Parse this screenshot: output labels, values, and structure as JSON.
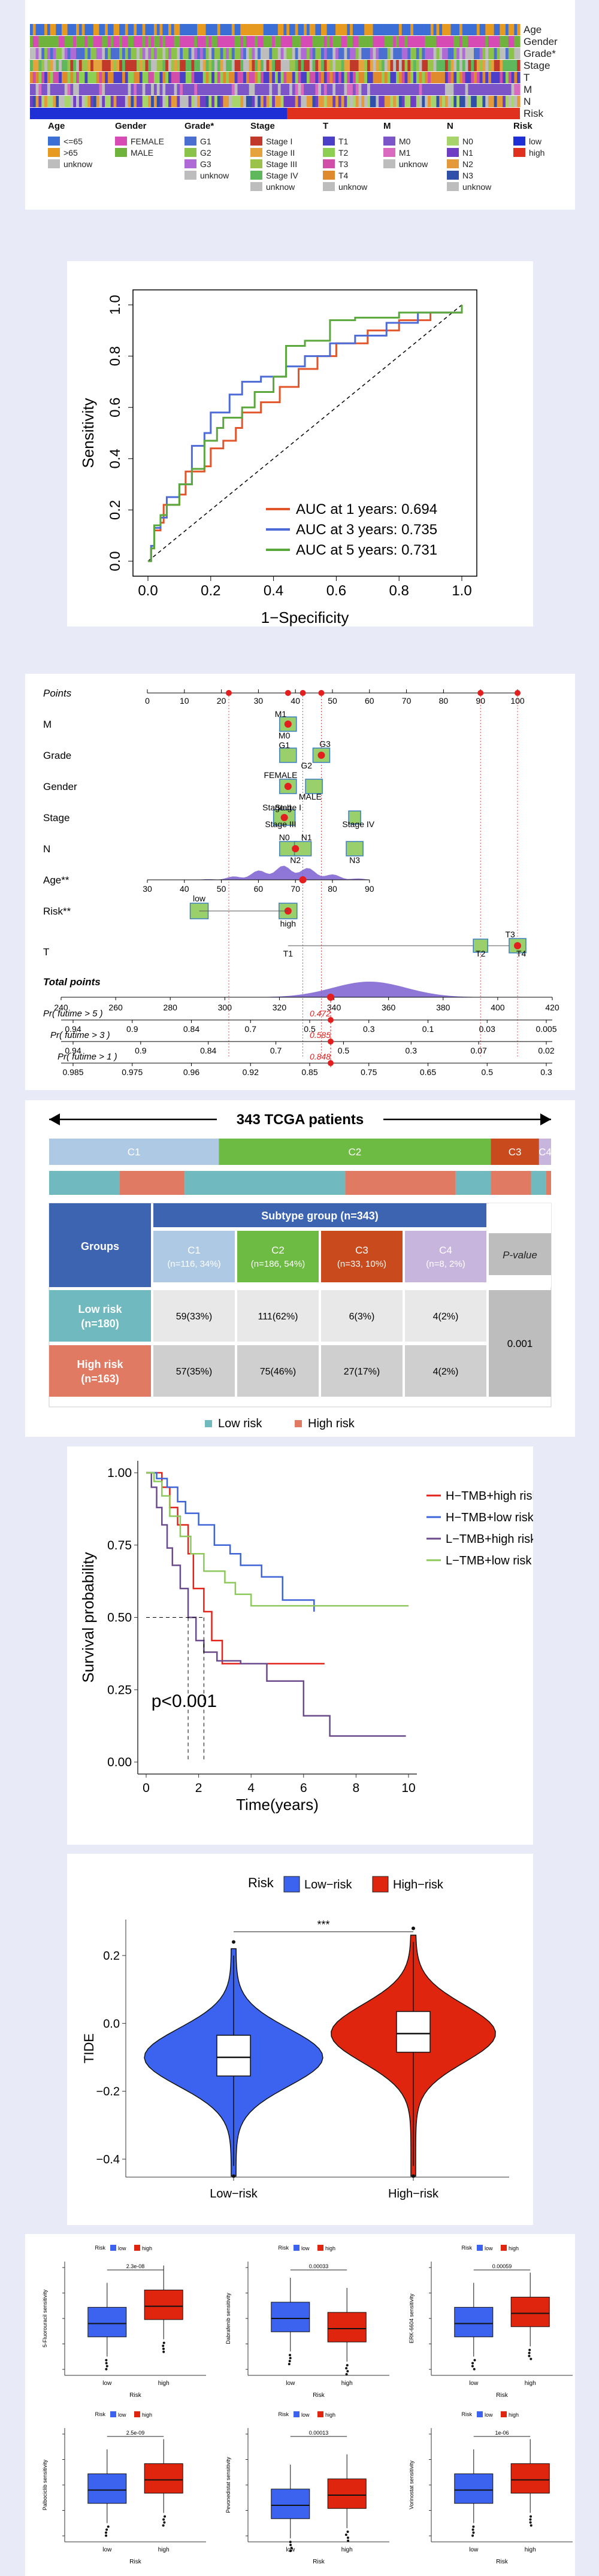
{
  "heatmap": {
    "tracks": [
      "Age",
      "Gender",
      "Grade*",
      "Stage",
      "T",
      "M",
      "N",
      "Risk"
    ],
    "legend": [
      {
        "title": "Age",
        "items": [
          {
            "label": "<=65",
            "color": "#3b6fd6"
          },
          {
            "label": ">65",
            "color": "#e69a1f"
          },
          {
            "label": "unknow",
            "color": "#bdbdbd"
          }
        ]
      },
      {
        "title": "Gender",
        "items": [
          {
            "label": "FEMALE",
            "color": "#d64bb4"
          },
          {
            "label": "MALE",
            "color": "#6fb33c"
          }
        ]
      },
      {
        "title": "Grade*",
        "items": [
          {
            "label": "G1",
            "color": "#4a6fd1"
          },
          {
            "label": "G2",
            "color": "#8bc34a"
          },
          {
            "label": "G3",
            "color": "#b06ad6"
          },
          {
            "label": "unknow",
            "color": "#bdbdbd"
          }
        ]
      },
      {
        "title": "Stage",
        "items": [
          {
            "label": "Stage I",
            "color": "#c0392b"
          },
          {
            "label": "Stage II",
            "color": "#e6a23c"
          },
          {
            "label": "Stage III",
            "color": "#9bc34a"
          },
          {
            "label": "Stage IV",
            "color": "#5fb85c"
          },
          {
            "label": "unknow",
            "color": "#bdbdbd"
          }
        ]
      },
      {
        "title": "T",
        "items": [
          {
            "label": "T1",
            "color": "#4a3fc6"
          },
          {
            "label": "T2",
            "color": "#8dcf53"
          },
          {
            "label": "T3",
            "color": "#d14fa8"
          },
          {
            "label": "T4",
            "color": "#e08a2e"
          },
          {
            "label": "unknow",
            "color": "#bdbdbd"
          }
        ]
      },
      {
        "title": "M",
        "items": [
          {
            "label": "M0",
            "color": "#7c55c9"
          },
          {
            "label": "M1",
            "color": "#d96ac0"
          },
          {
            "label": "unknow",
            "color": "#bdbdbd"
          }
        ]
      },
      {
        "title": "N",
        "items": [
          {
            "label": "N0",
            "color": "#a8d56b"
          },
          {
            "label": "N1",
            "color": "#6e3fc2"
          },
          {
            "label": "N2",
            "color": "#e49a3a"
          },
          {
            "label": "N3",
            "color": "#2f4fa8"
          },
          {
            "label": "unknow",
            "color": "#bdbdbd"
          }
        ]
      },
      {
        "title": "Risk",
        "items": [
          {
            "label": "low",
            "color": "#1f2fd6"
          },
          {
            "label": "high",
            "color": "#e0301e"
          }
        ]
      }
    ]
  },
  "roc": {
    "xlabel": "1−Specificity",
    "ylabel": "Sensitivity",
    "ticks": [
      "0.0",
      "0.2",
      "0.4",
      "0.6",
      "0.8",
      "1.0"
    ],
    "legend": [
      {
        "label": "AUC at 1 years: 0.694",
        "color": "#e2552a"
      },
      {
        "label": "AUC at 3 years: 0.735",
        "color": "#4d6bd6"
      },
      {
        "label": "AUC at 5 years: 0.731",
        "color": "#5aa83c"
      }
    ]
  },
  "nomogram": {
    "rows": [
      "Points",
      "M",
      "Grade",
      "Gender",
      "Stage",
      "N",
      "Age**",
      "Risk**",
      "T"
    ],
    "total_label": "Total points",
    "points_ticks": [
      "0",
      "10",
      "20",
      "30",
      "40",
      "50",
      "60",
      "70",
      "80",
      "90",
      "100"
    ],
    "m_labels": [
      "M1",
      "M0"
    ],
    "grade_labels": [
      "G1",
      "G2",
      "G3"
    ],
    "gender_labels": [
      "FEMALE",
      "MALE"
    ],
    "stage_labels": [
      "Stage II",
      "Stage I",
      "Stage III",
      "Stage IV"
    ],
    "n_labels": [
      "N0",
      "N1",
      "N2",
      "N3"
    ],
    "age_ticks": [
      "30",
      "40",
      "50",
      "60",
      "70",
      "80",
      "90"
    ],
    "risk_labels": [
      "low",
      "high"
    ],
    "t_labels": [
      "T1",
      "T2",
      "T3",
      "T4"
    ],
    "total_ticks": [
      "240",
      "260",
      "280",
      "300",
      "320",
      "340",
      "360",
      "380",
      "400",
      "420"
    ],
    "surv_rows": [
      {
        "label": "Pr( futime > 5 )",
        "ticks": [
          "0.94",
          "0.9",
          "0.84",
          "0.7",
          "0.5",
          "0.3",
          "0.1",
          "0.03",
          "0.005"
        ],
        "value": "0.472"
      },
      {
        "label": "Pr( futime > 3 )",
        "ticks": [
          "0.94",
          "0.9",
          "0.84",
          "0.7",
          "0.5",
          "0.3",
          "0.07",
          "0.02"
        ],
        "value": "0.585"
      },
      {
        "label": "Pr( futime > 1 )",
        "ticks": [
          "0.985",
          "0.975",
          "0.96",
          "0.92",
          "0.85",
          "0.75",
          "0.65",
          "0.5",
          "0.3"
        ],
        "value": "0.848"
      }
    ]
  },
  "subtype": {
    "header": "343 TCGA patients",
    "bar": [
      {
        "label": "C1",
        "color": "#aec9e3",
        "frac": 0.338
      },
      {
        "label": "C2",
        "color": "#6dbb43",
        "frac": 0.542
      },
      {
        "label": "C3",
        "color": "#c94a1c",
        "frac": 0.096
      },
      {
        "label": "C4",
        "color": "#c8b5de",
        "frac": 0.024
      }
    ],
    "table": {
      "groups_header": "Groups",
      "subtype_header": "Subtype group (n=343)",
      "cols": [
        {
          "name": "C1",
          "n": "(n=116, 34%)",
          "color": "#aec9e3"
        },
        {
          "name": "C2",
          "n": "(n=186, 54%)",
          "color": "#6dbb43"
        },
        {
          "name": "C3",
          "n": "(n=33, 10%)",
          "color": "#c94a1c"
        },
        {
          "name": "C4",
          "n": "(n=8, 2%)",
          "color": "#c8b5de"
        }
      ],
      "pvalue_header": "P-value",
      "rows": [
        {
          "group": "Low risk",
          "n": "(n=180)",
          "color": "#6fb9bf",
          "cells": [
            "59(33%)",
            "111(62%)",
            "6(3%)",
            "4(2%)"
          ]
        },
        {
          "group": "High risk",
          "n": "(n=163)",
          "color": "#e07a63",
          "cells": [
            "57(35%)",
            "75(46%)",
            "27(17%)",
            "4(2%)"
          ]
        }
      ],
      "pvalue": "0.001"
    },
    "legend": [
      {
        "label": "Low risk",
        "color": "#6fb9bf"
      },
      {
        "label": "High risk",
        "color": "#e07a63"
      }
    ]
  },
  "km": {
    "ylabel": "Survival probability",
    "xlabel": "Time(years)",
    "yticks": [
      "0.00",
      "0.25",
      "0.50",
      "0.75",
      "1.00"
    ],
    "xticks": [
      "0",
      "2",
      "4",
      "6",
      "8",
      "10"
    ],
    "pvalue": "p<0.001",
    "legend": [
      {
        "label": "H−TMB+high risk",
        "color": "#e2231a"
      },
      {
        "label": "H−TMB+low risk",
        "color": "#3c64d8"
      },
      {
        "label": "L−TMB+high risk",
        "color": "#6a4a8c"
      },
      {
        "label": "L−TMB+low risk",
        "color": "#8cc85a"
      }
    ]
  },
  "tide": {
    "legend_title": "Risk",
    "legend": [
      {
        "label": "Low−risk",
        "color": "#3b63f0"
      },
      {
        "label": "High−risk",
        "color": "#e0250f"
      }
    ],
    "ylabel": "TIDE",
    "yticks": [
      "0.2",
      "0.0",
      "−0.2",
      "−0.4"
    ],
    "categories": [
      "Low−risk",
      "High−risk"
    ],
    "sig": "***"
  },
  "drug_boxes": {
    "legend_title": "Risk",
    "legend_labels": [
      "low",
      "high"
    ],
    "xlabel": "Risk",
    "panels": [
      {
        "ylabel": "5-Fluorouracil sensitivity",
        "p": "2.3e-08"
      },
      {
        "ylabel": "Dabrafenib sensitivity",
        "p": "0.00033"
      },
      {
        "ylabel": "ERK-6604 sensitivity",
        "p": "0.00059"
      },
      {
        "ylabel": "Palbociclib sensitivity",
        "p": "2.5e-09"
      },
      {
        "ylabel": "Pevonedistat sensitivity",
        "p": "0.00013"
      },
      {
        "ylabel": "Vorinostat sensitivity",
        "p": "1e-06"
      }
    ],
    "group_labels": [
      "low",
      "high"
    ]
  }
}
